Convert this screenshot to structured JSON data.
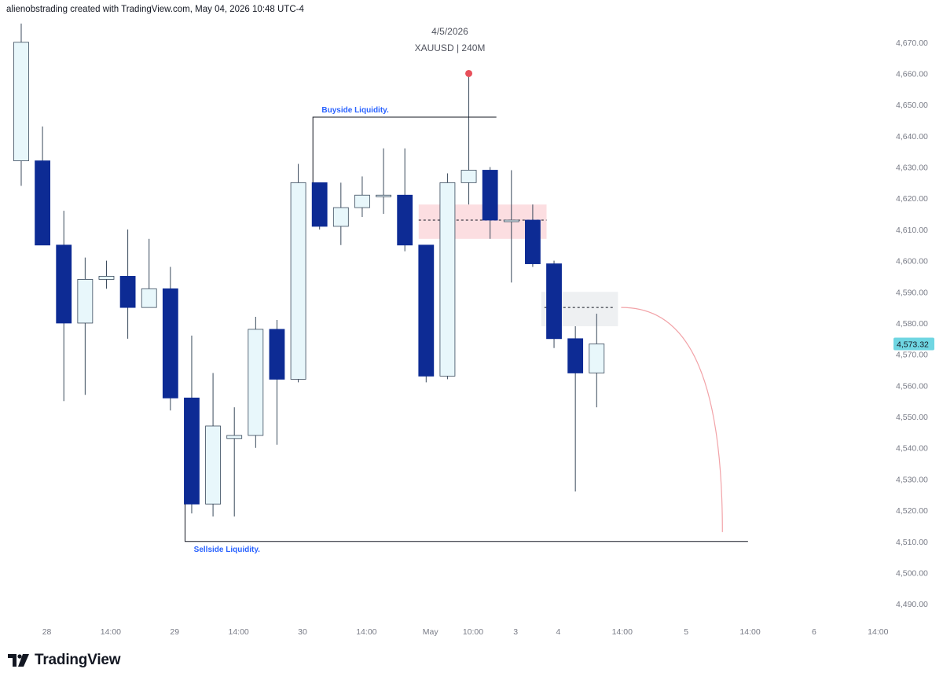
{
  "header": {
    "credit": "alienobstrading created with TradingView.com, May 04, 2026 10:48 UTC-4"
  },
  "footer": {
    "brand": "TradingView"
  },
  "colors": {
    "bear_fill": "#0d2b94",
    "bull_fill": "#e8f7fb",
    "candle_outline": "#0d2b94",
    "bull_outline": "#3a4a5c",
    "wick": "#3a4a5c",
    "price_label_bg": "#6fd6e2",
    "annotation_text": "#2962ff",
    "red_zone": "#fbd6d9",
    "gray_zone": "#eceef1",
    "projection_line": "#f2a3a8",
    "high_marker": "#e8505b"
  },
  "chart_data": {
    "type": "candlestick",
    "symbol": "XAUUSD",
    "title": "4/5/2026",
    "subtitle": "XAUUSD | 240M",
    "y_axis": {
      "ylim": [
        4484,
        4678
      ],
      "ticks": [
        4490,
        4500,
        4510,
        4520,
        4530,
        4540,
        4550,
        4560,
        4570,
        4580,
        4590,
        4600,
        4610,
        4620,
        4630,
        4640,
        4650,
        4660,
        4670
      ],
      "tick_labels": [
        "4,490.00",
        "4,500.00",
        "4,510.00",
        "4,520.00",
        "4,530.00",
        "4,540.00",
        "4,550.00",
        "4,560.00",
        "4,570.00",
        "4,580.00",
        "4,590.00",
        "4,600.00",
        "4,610.00",
        "4,620.00",
        "4,630.00",
        "4,640.00",
        "4,650.00",
        "4,660.00",
        "4,670.00"
      ]
    },
    "x_axis": {
      "range_index": [
        -0.7,
        40.3
      ],
      "labels": [
        {
          "text": "28",
          "index": 1.2
        },
        {
          "text": "14:00",
          "index": 4.2
        },
        {
          "text": "29",
          "index": 7.2
        },
        {
          "text": "14:00",
          "index": 10.2
        },
        {
          "text": "30",
          "index": 13.2
        },
        {
          "text": "14:00",
          "index": 16.2
        },
        {
          "text": "May",
          "index": 19.2
        },
        {
          "text": "10:00",
          "index": 21.2
        },
        {
          "text": "3",
          "index": 23.2
        },
        {
          "text": "4",
          "index": 25.2
        },
        {
          "text": "14:00",
          "index": 28.2
        },
        {
          "text": "5",
          "index": 31.2
        },
        {
          "text": "14:00",
          "index": 34.2
        },
        {
          "text": "6",
          "index": 37.2
        },
        {
          "text": "14:00",
          "index": 40.2
        }
      ]
    },
    "candles": [
      {
        "o": 4632,
        "h": 4676,
        "l": 4624,
        "c": 4670
      },
      {
        "o": 4632,
        "h": 4643,
        "l": 4605,
        "c": 4605
      },
      {
        "o": 4605,
        "h": 4616,
        "l": 4555,
        "c": 4580
      },
      {
        "o": 4580,
        "h": 4601,
        "l": 4557,
        "c": 4594
      },
      {
        "o": 4594,
        "h": 4600,
        "l": 4591,
        "c": 4595
      },
      {
        "o": 4595,
        "h": 4610,
        "l": 4575,
        "c": 4585
      },
      {
        "o": 4585,
        "h": 4607,
        "l": 4585,
        "c": 4591
      },
      {
        "o": 4591,
        "h": 4598,
        "l": 4552,
        "c": 4556
      },
      {
        "o": 4556,
        "h": 4576,
        "l": 4519,
        "c": 4522
      },
      {
        "o": 4522,
        "h": 4564,
        "l": 4518,
        "c": 4547
      },
      {
        "o": 4543,
        "h": 4553,
        "l": 4518,
        "c": 4544
      },
      {
        "o": 4544,
        "h": 4582,
        "l": 4540,
        "c": 4578
      },
      {
        "o": 4578,
        "h": 4581,
        "l": 4541,
        "c": 4562
      },
      {
        "o": 4562,
        "h": 4631,
        "l": 4561,
        "c": 4625
      },
      {
        "o": 4625,
        "h": 4625,
        "l": 4610,
        "c": 4611
      },
      {
        "o": 4611,
        "h": 4625,
        "l": 4605,
        "c": 4617
      },
      {
        "o": 4617,
        "h": 4627,
        "l": 4614,
        "c": 4621
      },
      {
        "o": 4621,
        "h": 4636,
        "l": 4615,
        "c": 4621
      },
      {
        "o": 4621,
        "h": 4636,
        "l": 4603,
        "c": 4605
      },
      {
        "o": 4605,
        "h": 4605,
        "l": 4561,
        "c": 4563
      },
      {
        "o": 4563,
        "h": 4628,
        "l": 4562,
        "c": 4625
      },
      {
        "o": 4625,
        "h": 4660,
        "l": 4618,
        "c": 4629
      },
      {
        "o": 4629,
        "h": 4630,
        "l": 4607,
        "c": 4613
      },
      {
        "o": 4613,
        "h": 4629,
        "l": 4593,
        "c": 4613
      },
      {
        "o": 4613,
        "h": 4618,
        "l": 4598,
        "c": 4599
      },
      {
        "o": 4599,
        "h": 4600,
        "l": 4572,
        "c": 4575
      },
      {
        "o": 4575,
        "h": 4579,
        "l": 4526,
        "c": 4564
      },
      {
        "o": 4564,
        "h": 4583,
        "l": 4553,
        "c": 4573.32
      }
    ],
    "current_price": {
      "value": 4573.32,
      "label": "4,573.32"
    },
    "annotations": {
      "buyside": {
        "text": "Buyside Liquidity.",
        "price": 4646,
        "start_index": 14,
        "end_index": 22,
        "label_index": 14.1
      },
      "sellside": {
        "text": "Sellside Liquidity.",
        "price": 4510,
        "start_index": 8,
        "end_index": 34.1,
        "label_index": 8.1
      },
      "high_marker": {
        "price": 4660,
        "index": 21
      },
      "red_zone": {
        "top": 4618,
        "bottom": 4607,
        "start_index": 19,
        "end_index": 25,
        "mid": 4613
      },
      "gray_zone": {
        "top": 4590,
        "bottom": 4579,
        "start_index": 24.4,
        "end_index": 28,
        "mid": 4585
      },
      "projection": {
        "start_price": 4585,
        "start_index": 28,
        "end_price": 4513,
        "end_index": 32.9
      }
    }
  }
}
